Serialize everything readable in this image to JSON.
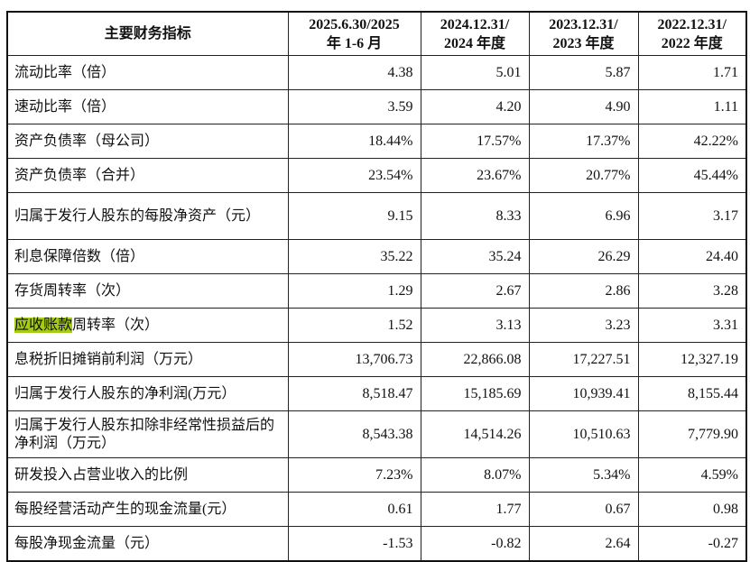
{
  "table": {
    "headers": [
      "主要财务指标",
      "2025.6.30/2025年 1-6 月",
      "2024.12.31/2024 年度",
      "2023.12.31/2023 年度",
      "2022.12.31/2022 年度"
    ],
    "header_lines": [
      [
        "主要财务指标"
      ],
      [
        "2025.6.30/2025",
        "年 1-6 月"
      ],
      [
        "2024.12.31/",
        "2024 年度"
      ],
      [
        "2023.12.31/",
        "2023 年度"
      ],
      [
        "2022.12.31/",
        "2022 年度"
      ]
    ],
    "rows": [
      {
        "label": "流动比率（倍）",
        "values": [
          "4.38",
          "5.01",
          "5.87",
          "1.71"
        ]
      },
      {
        "label": "速动比率（倍）",
        "values": [
          "3.59",
          "4.20",
          "4.90",
          "1.11"
        ]
      },
      {
        "label": "资产负债率（母公司）",
        "values": [
          "18.44%",
          "17.57%",
          "17.37%",
          "42.22%"
        ]
      },
      {
        "label": "资产负债率（合并）",
        "values": [
          "23.54%",
          "23.67%",
          "20.77%",
          "45.44%"
        ]
      },
      {
        "label": "归属于发行人股东的每股净资产（元）",
        "values": [
          "9.15",
          "8.33",
          "6.96",
          "3.17"
        ]
      },
      {
        "label": "利息保障倍数（倍）",
        "values": [
          "35.22",
          "35.24",
          "26.29",
          "24.40"
        ]
      },
      {
        "label": "存货周转率（次）",
        "values": [
          "1.29",
          "2.67",
          "2.86",
          "3.28"
        ]
      },
      {
        "label_highlight": "应收账款",
        "label": "周转率（次）",
        "values": [
          "1.52",
          "3.13",
          "3.23",
          "3.31"
        ]
      },
      {
        "label": "息税折旧摊销前利润（万元）",
        "values": [
          "13,706.73",
          "22,866.08",
          "17,227.51",
          "12,327.19"
        ]
      },
      {
        "label": "归属于发行人股东的净利润(万元）",
        "values": [
          "8,518.47",
          "15,185.69",
          "10,939.41",
          "8,155.44"
        ]
      },
      {
        "label": "归属于发行人股东扣除非经常性损益后的净利润（万元）",
        "values": [
          "8,543.38",
          "14,514.26",
          "10,510.63",
          "7,779.90"
        ]
      },
      {
        "label": "研发投入占营业收入的比例",
        "values": [
          "7.23%",
          "8.07%",
          "5.34%",
          "4.59%"
        ]
      },
      {
        "label": "每股经营活动产生的现金流量(元）",
        "values": [
          "0.61",
          "1.77",
          "0.67",
          "0.98"
        ]
      },
      {
        "label": "每股净现金流量（元）",
        "values": [
          "-1.53",
          "-0.82",
          "2.64",
          "-0.27"
        ]
      }
    ],
    "highlight_color": "#a3cc12"
  }
}
